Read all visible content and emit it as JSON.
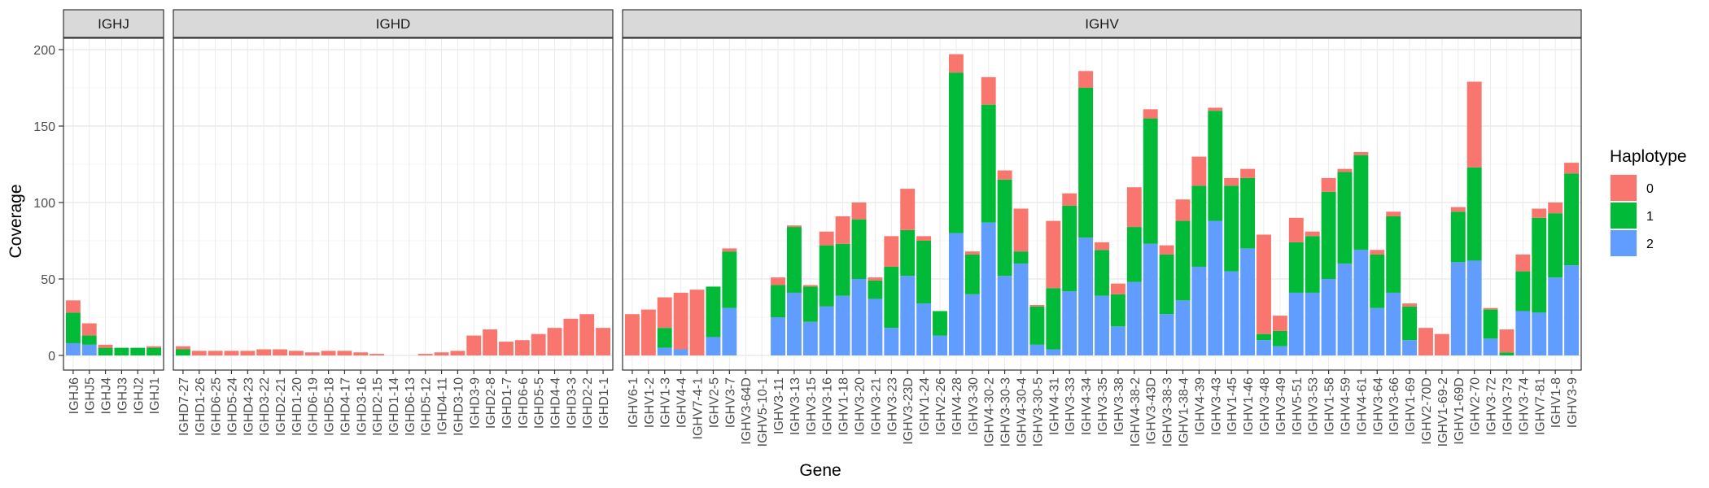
{
  "chart_data": {
    "type": "bar",
    "stacked": true,
    "xlabel": "Gene",
    "ylabel": "Coverage",
    "ylim": [
      0,
      206
    ],
    "yticks": [
      0,
      50,
      100,
      150,
      200
    ],
    "grid": true,
    "legend": {
      "title": "Haplotype",
      "position": "right",
      "entries": [
        {
          "label": "0",
          "color": "#F8766D"
        },
        {
          "label": "1",
          "color": "#00BA38"
        },
        {
          "label": "2",
          "color": "#619CFF"
        }
      ]
    },
    "series_colors": {
      "h0": "#F8766D",
      "h1": "#00BA38",
      "h2": "#619CFF"
    },
    "facets": [
      {
        "name": "IGHJ",
        "categories": [
          "IGHJ6",
          "IGHJ5",
          "IGHJ4",
          "IGHJ3",
          "IGHJ2",
          "IGHJ1"
        ],
        "h2": [
          8,
          7,
          0,
          0,
          0,
          0
        ],
        "h1": [
          20,
          6,
          5,
          5,
          5,
          5
        ],
        "h0": [
          8,
          8,
          2,
          0,
          0,
          1
        ]
      },
      {
        "name": "IGHD",
        "categories": [
          "IGHD7-27",
          "IGHD1-26",
          "IGHD6-25",
          "IGHD5-24",
          "IGHD4-23",
          "IGHD3-22",
          "IGHD2-21",
          "IGHD1-20",
          "IGHD6-19",
          "IGHD5-18",
          "IGHD4-17",
          "IGHD3-16",
          "IGHD2-15",
          "IGHD1-14",
          "IGHD6-13",
          "IGHD5-12",
          "IGHD4-11",
          "IGHD3-10",
          "IGHD3-9",
          "IGHD2-8",
          "IGHD1-7",
          "IGHD6-6",
          "IGHD5-5",
          "IGHD4-4",
          "IGHD3-3",
          "IGHD2-2",
          "IGHD1-1"
        ],
        "h2": [
          0,
          0,
          0,
          0,
          0,
          0,
          0,
          0,
          0,
          0,
          0,
          0,
          0,
          0,
          0,
          0,
          0,
          0,
          0,
          0,
          0,
          0,
          0,
          0,
          0,
          0,
          0
        ],
        "h1": [
          4,
          0,
          0,
          0,
          0,
          0,
          0,
          0,
          0,
          0,
          0,
          0,
          0,
          0,
          0,
          0,
          0,
          0,
          0,
          0,
          0,
          0,
          0,
          0,
          0,
          0,
          0
        ],
        "h0": [
          2,
          3,
          3,
          3,
          3,
          4,
          4,
          3,
          2,
          3,
          3,
          2,
          1,
          0,
          0,
          1,
          2,
          3,
          13,
          17,
          9,
          10,
          14,
          18,
          24,
          27,
          18
        ]
      },
      {
        "name": "IGHV",
        "categories": [
          "IGHV6-1",
          "IGHV1-2",
          "IGHV1-3",
          "IGHV4-4",
          "IGHV7-4-1",
          "IGHV2-5",
          "IGHV3-7",
          "IGHV3-64D",
          "IGHV5-10-1",
          "IGHV3-11",
          "IGHV3-13",
          "IGHV3-15",
          "IGHV3-16",
          "IGHV1-18",
          "IGHV3-20",
          "IGHV3-21",
          "IGHV3-23",
          "IGHV3-23D",
          "IGHV1-24",
          "IGHV2-26",
          "IGHV4-28",
          "IGHV3-30",
          "IGHV4-30-2",
          "IGHV3-30-3",
          "IGHV4-30-4",
          "IGHV3-30-5",
          "IGHV4-31",
          "IGHV3-33",
          "IGHV4-34",
          "IGHV3-35",
          "IGHV3-38",
          "IGHV4-38-2",
          "IGHV3-43D",
          "IGHV3-38-3",
          "IGHV1-38-4",
          "IGHV4-39",
          "IGHV3-43",
          "IGHV1-45",
          "IGHV1-46",
          "IGHV3-48",
          "IGHV3-49",
          "IGHV5-51",
          "IGHV3-53",
          "IGHV1-58",
          "IGHV4-59",
          "IGHV4-61",
          "IGHV3-64",
          "IGHV3-66",
          "IGHV1-69",
          "IGHV2-70D",
          "IGHV1-69-2",
          "IGHV1-69D",
          "IGHV2-70",
          "IGHV3-72",
          "IGHV3-73",
          "IGHV3-74",
          "IGHV7-81",
          "IGHV1-8",
          "IGHV3-9"
        ],
        "h2": [
          0,
          0,
          5,
          4,
          0,
          12,
          31,
          0,
          0,
          25,
          41,
          22,
          32,
          39,
          50,
          37,
          18,
          52,
          34,
          13,
          80,
          40,
          87,
          52,
          60,
          7,
          4,
          42,
          77,
          39,
          19,
          48,
          73,
          27,
          36,
          58,
          88,
          55,
          70,
          10,
          6,
          41,
          41,
          50,
          60,
          69,
          31,
          41,
          10,
          0,
          0,
          61,
          62,
          11,
          0,
          29,
          28,
          51,
          59
        ],
        "h1": [
          0,
          0,
          13,
          0,
          0,
          33,
          37,
          0,
          0,
          21,
          43,
          23,
          40,
          34,
          39,
          12,
          40,
          30,
          41,
          16,
          105,
          26,
          77,
          63,
          8,
          25,
          40,
          56,
          98,
          30,
          21,
          36,
          82,
          39,
          52,
          53,
          72,
          56,
          46,
          4,
          10,
          33,
          37,
          57,
          60,
          62,
          35,
          50,
          22,
          0,
          0,
          33,
          61,
          19,
          2,
          26,
          62,
          42,
          60
        ],
        "h0": [
          27,
          30,
          20,
          37,
          43,
          0,
          2,
          0,
          0,
          5,
          1,
          1,
          9,
          18,
          11,
          2,
          20,
          27,
          3,
          0,
          12,
          2,
          18,
          6,
          28,
          1,
          44,
          8,
          11,
          5,
          7,
          26,
          6,
          6,
          14,
          19,
          2,
          5,
          6,
          65,
          10,
          16,
          3,
          9,
          2,
          2,
          3,
          3,
          2,
          18,
          14,
          3,
          56,
          1,
          15,
          11,
          6,
          7,
          7
        ]
      }
    ]
  }
}
